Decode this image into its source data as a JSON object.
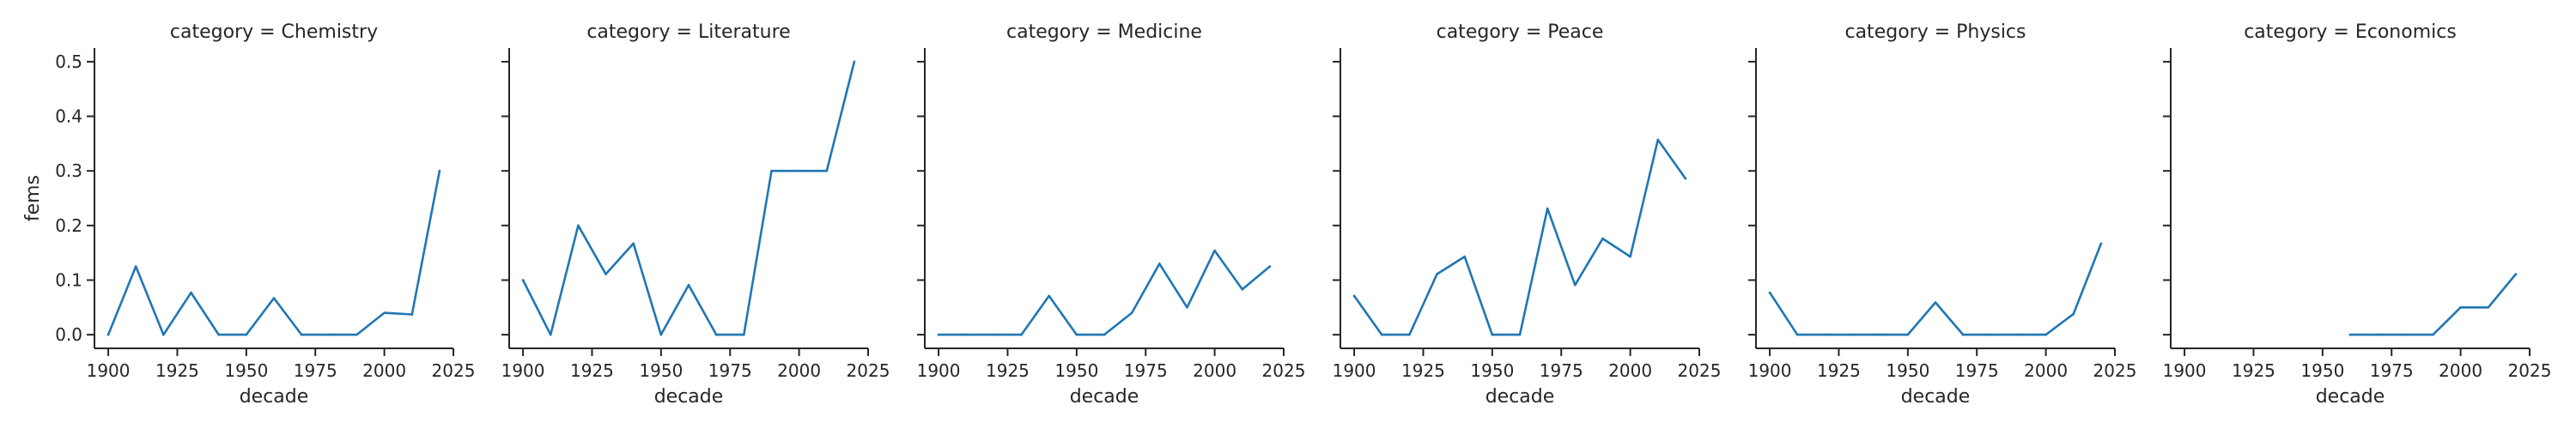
{
  "figure": {
    "xlabel": "decade",
    "ylabel": "fems"
  },
  "chart_data": [
    {
      "type": "line",
      "title": "category = Chemistry",
      "xlabel": "decade",
      "ylabel": "fems",
      "xlim": [
        1895,
        2025
      ],
      "ylim": [
        -0.025,
        0.525
      ],
      "xticks": [
        1900,
        1925,
        1950,
        1975,
        2000,
        2025
      ],
      "yticks": [
        0.0,
        0.1,
        0.2,
        0.3,
        0.4,
        0.5
      ],
      "color": "#1f77b4",
      "x": [
        1900,
        1910,
        1920,
        1930,
        1940,
        1950,
        1960,
        1970,
        1980,
        1990,
        2000,
        2010,
        2020
      ],
      "y": [
        0.0,
        0.125,
        0.0,
        0.077,
        0.0,
        0.0,
        0.067,
        0.0,
        0.0,
        0.0,
        0.04,
        0.037,
        0.3
      ]
    },
    {
      "type": "line",
      "title": "category = Literature",
      "xlabel": "decade",
      "ylabel": "",
      "xlim": [
        1895,
        2025
      ],
      "ylim": [
        -0.025,
        0.525
      ],
      "xticks": [
        1900,
        1925,
        1950,
        1975,
        2000,
        2025
      ],
      "yticks": [
        0.0,
        0.1,
        0.2,
        0.3,
        0.4,
        0.5
      ],
      "color": "#1f77b4",
      "x": [
        1900,
        1910,
        1920,
        1930,
        1940,
        1950,
        1960,
        1970,
        1980,
        1990,
        2000,
        2010,
        2020
      ],
      "y": [
        0.1,
        0.0,
        0.2,
        0.111,
        0.167,
        0.0,
        0.091,
        0.0,
        0.0,
        0.3,
        0.3,
        0.3,
        0.5
      ]
    },
    {
      "type": "line",
      "title": "category = Medicine",
      "xlabel": "decade",
      "ylabel": "",
      "xlim": [
        1895,
        2025
      ],
      "ylim": [
        -0.025,
        0.525
      ],
      "xticks": [
        1900,
        1925,
        1950,
        1975,
        2000,
        2025
      ],
      "yticks": [
        0.0,
        0.1,
        0.2,
        0.3,
        0.4,
        0.5
      ],
      "color": "#1f77b4",
      "x": [
        1900,
        1910,
        1920,
        1930,
        1940,
        1950,
        1960,
        1970,
        1980,
        1990,
        2000,
        2010,
        2020
      ],
      "y": [
        0.0,
        0.0,
        0.0,
        0.0,
        0.071,
        0.0,
        0.0,
        0.04,
        0.13,
        0.05,
        0.154,
        0.083,
        0.125
      ]
    },
    {
      "type": "line",
      "title": "category = Peace",
      "xlabel": "decade",
      "ylabel": "",
      "xlim": [
        1895,
        2025
      ],
      "ylim": [
        -0.025,
        0.525
      ],
      "xticks": [
        1900,
        1925,
        1950,
        1975,
        2000,
        2025
      ],
      "yticks": [
        0.0,
        0.1,
        0.2,
        0.3,
        0.4,
        0.5
      ],
      "color": "#1f77b4",
      "x": [
        1900,
        1910,
        1920,
        1930,
        1940,
        1950,
        1960,
        1970,
        1980,
        1990,
        2000,
        2010,
        2020
      ],
      "y": [
        0.071,
        0.0,
        0.0,
        0.111,
        0.143,
        0.0,
        0.0,
        0.231,
        0.091,
        0.176,
        0.143,
        0.357,
        0.286
      ]
    },
    {
      "type": "line",
      "title": "category = Physics",
      "xlabel": "decade",
      "ylabel": "",
      "xlim": [
        1895,
        2025
      ],
      "ylim": [
        -0.025,
        0.525
      ],
      "xticks": [
        1900,
        1925,
        1950,
        1975,
        2000,
        2025
      ],
      "yticks": [
        0.0,
        0.1,
        0.2,
        0.3,
        0.4,
        0.5
      ],
      "color": "#1f77b4",
      "x": [
        1900,
        1910,
        1920,
        1930,
        1940,
        1950,
        1960,
        1970,
        1980,
        1990,
        2000,
        2010,
        2020
      ],
      "y": [
        0.077,
        0.0,
        0.0,
        0.0,
        0.0,
        0.0,
        0.059,
        0.0,
        0.0,
        0.0,
        0.0,
        0.038,
        0.167
      ]
    },
    {
      "type": "line",
      "title": "category = Economics",
      "xlabel": "decade",
      "ylabel": "",
      "xlim": [
        1895,
        2025
      ],
      "ylim": [
        -0.025,
        0.525
      ],
      "xticks": [
        1900,
        1925,
        1950,
        1975,
        2000,
        2025
      ],
      "yticks": [
        0.0,
        0.1,
        0.2,
        0.3,
        0.4,
        0.5
      ],
      "color": "#1f77b4",
      "x": [
        1960,
        1970,
        1980,
        1990,
        2000,
        2010,
        2020
      ],
      "y": [
        0.0,
        0.0,
        0.0,
        0.0,
        0.05,
        0.05,
        0.111
      ]
    }
  ]
}
